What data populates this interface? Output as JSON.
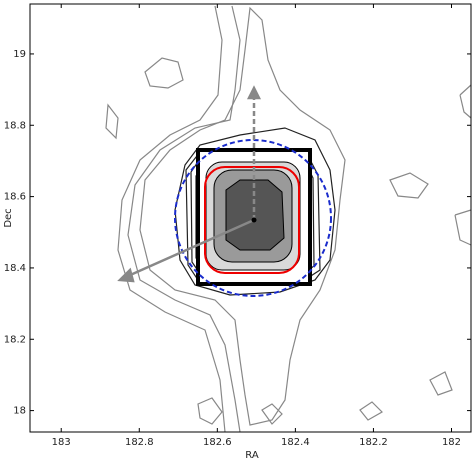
{
  "chart_data": {
    "type": "contour",
    "x_label": "RA",
    "y_label": "Dec",
    "xlim": [
      183.08,
      181.95
    ],
    "xticks": [
      183,
      182.8,
      182.6,
      182.4,
      182.2,
      182
    ],
    "ylim": [
      17.94,
      19.14
    ],
    "yticks": [
      19,
      18.8,
      18.6,
      18.4,
      18.2,
      18
    ]
  }
}
